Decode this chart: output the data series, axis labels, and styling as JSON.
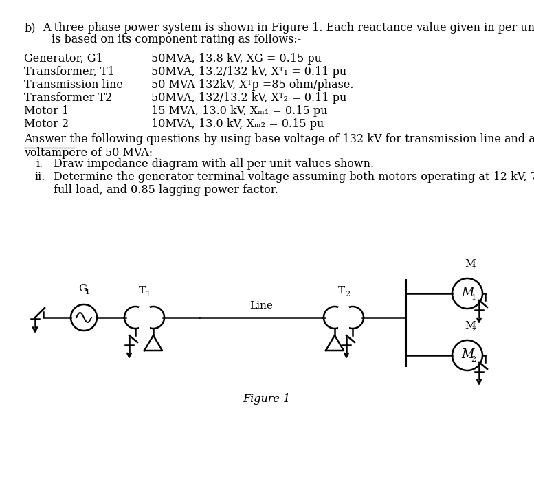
{
  "bg_color": "#ffffff",
  "text_color": "#000000",
  "line_color": "#000000",
  "fs": 11.5,
  "fs_small": 9.5,
  "rows": [
    [
      "Generator, G1",
      "50MVA, 13.8 kV, XG = 0.15 pu",
      true
    ],
    [
      "Transformer, T1",
      "50MVA, 13.2/132 kV, Xᵀ₁ = 0.11 pu",
      true
    ],
    [
      "Transmission line",
      "50 MVA 132kV, Xᵀp =85 ohm/phase.",
      false
    ],
    [
      "Transformer T2",
      "50MVA, 132/13.2 kV, Xᵀ₂ = 0.11 pu",
      true
    ],
    [
      "Motor 1",
      "15 MVA, 13.0 kV, Xₘ₁ = 0.15 pu",
      true
    ],
    [
      "Motor 2",
      "10MVA, 13.0 kV, Xₘ₂ = 0.15 pu",
      true
    ]
  ],
  "pu_prefix": [
    "50MVA, 13.8 kV, XG = 0.15 ",
    "50MVA, 13.2/132 kV, Xᵀ₁ = 0.11 ",
    "",
    "50MVA, 132/13.2 kV, Xᵀ₂ = 0.11 ",
    "15 MVA, 13.0 kV, Xₘ₁ = 0.15 ",
    "10MVA, 13.0 kV, Xₘ₂ = 0.15 "
  ]
}
